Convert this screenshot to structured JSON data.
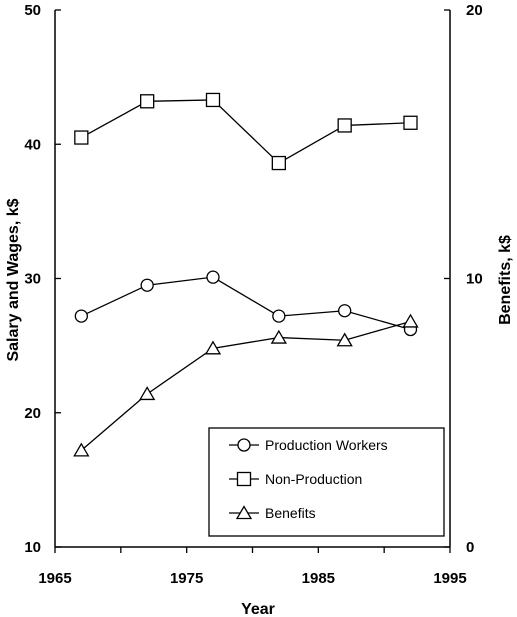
{
  "chart_data": {
    "type": "line",
    "xlabel": "Year",
    "ylabel_left": "Salary and Wages, k$",
    "ylabel_right": "Benefits, k$",
    "xlim": [
      1965,
      1995
    ],
    "x_ticks": [
      1965,
      1975,
      1985,
      1995
    ],
    "x_ticks_minor": [
      1970,
      1980,
      1990
    ],
    "ylim_left": [
      10,
      50
    ],
    "y_ticks_left": [
      10,
      20,
      30,
      40,
      50
    ],
    "ylim_right": [
      0,
      20
    ],
    "y_ticks_right": [
      0,
      10,
      20
    ],
    "grid": false,
    "legend_position": "bottom-right",
    "series": [
      {
        "name": "Production Workers",
        "marker": "circle",
        "axis": "left",
        "x": [
          1967,
          1972,
          1977,
          1982,
          1987,
          1992
        ],
        "values": [
          27.2,
          29.5,
          30.1,
          27.2,
          27.6,
          26.2
        ]
      },
      {
        "name": "Non-Production",
        "marker": "square",
        "axis": "left",
        "x": [
          1967,
          1972,
          1977,
          1982,
          1987,
          1992
        ],
        "values": [
          40.5,
          43.2,
          43.3,
          38.6,
          41.4,
          41.6
        ]
      },
      {
        "name": "Benefits",
        "marker": "triangle",
        "axis": "right",
        "x": [
          1967,
          1972,
          1977,
          1982,
          1987,
          1992
        ],
        "values": [
          3.6,
          5.7,
          7.4,
          7.8,
          7.7,
          8.4
        ]
      }
    ]
  }
}
